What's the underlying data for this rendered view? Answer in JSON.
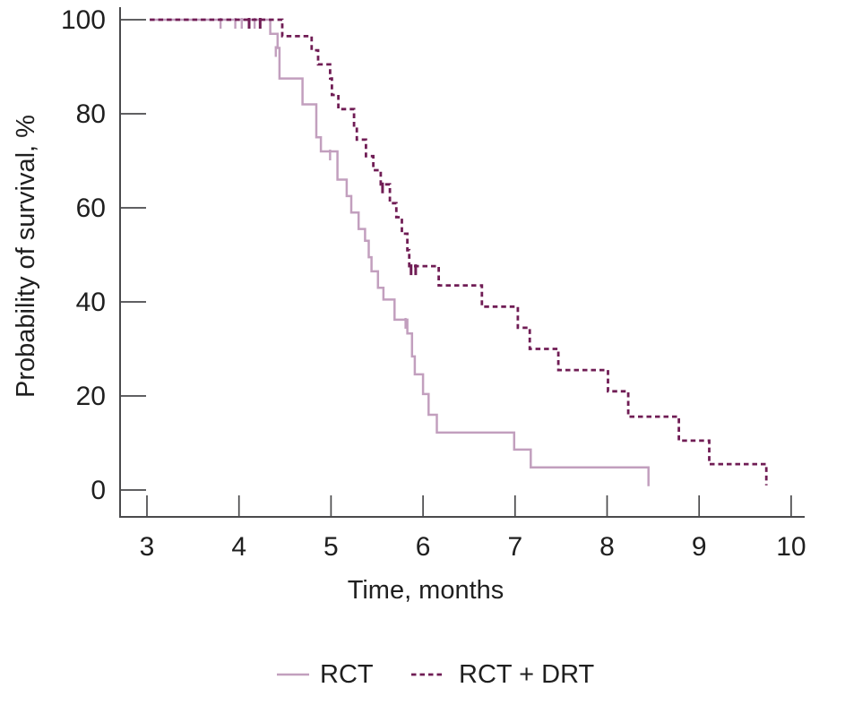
{
  "chart_data": {
    "type": "line",
    "subtype": "kaplan-meier-step",
    "title": "",
    "xlabel": "Time, months",
    "ylabel": "Probability of survival, %",
    "xlim": [
      3,
      10
    ],
    "ylim": [
      0,
      100
    ],
    "x_ticks": [
      3,
      4,
      5,
      6,
      7,
      8,
      9,
      10
    ],
    "y_ticks": [
      0,
      20,
      40,
      60,
      80,
      100
    ],
    "grid": false,
    "legend_position": "bottom-center",
    "axis_color": "#4a4a4c",
    "text_color": "#1f1f1f",
    "series": [
      {
        "name": "RCT",
        "line_style": "solid",
        "color": "#c29fbe",
        "start": [
          3.03,
          100
        ],
        "steps": [
          [
            4.34,
            97
          ],
          [
            4.42,
            94
          ],
          [
            4.44,
            87.5
          ],
          [
            4.69,
            82
          ],
          [
            4.84,
            75
          ],
          [
            4.89,
            72
          ],
          [
            5.07,
            66
          ],
          [
            5.17,
            62.5
          ],
          [
            5.22,
            59
          ],
          [
            5.3,
            55.5
          ],
          [
            5.37,
            53
          ],
          [
            5.41,
            49.5
          ],
          [
            5.44,
            46.5
          ],
          [
            5.51,
            43
          ],
          [
            5.57,
            40.5
          ],
          [
            5.69,
            36.2
          ],
          [
            5.83,
            33.3
          ],
          [
            5.88,
            28.4
          ],
          [
            5.91,
            24.6
          ],
          [
            6.0,
            20.4
          ],
          [
            6.06,
            16
          ],
          [
            6.15,
            12.2
          ],
          [
            6.99,
            8.6
          ],
          [
            7.17,
            4.8
          ],
          [
            8.45,
            0.8
          ]
        ],
        "censor_marks": [
          [
            3.8,
            100
          ],
          [
            3.96,
            100
          ],
          [
            4.03,
            100
          ],
          [
            4.17,
            100
          ],
          [
            4.4,
            94
          ],
          [
            4.99,
            72
          ],
          [
            5.81,
            36.2
          ]
        ]
      },
      {
        "name": "RCT + DRT",
        "line_style": "dashed",
        "color": "#701d55",
        "start": [
          3.03,
          100
        ],
        "steps": [
          [
            4.47,
            96.5
          ],
          [
            4.79,
            93.5
          ],
          [
            4.86,
            90.5
          ],
          [
            4.99,
            87.5
          ],
          [
            5.01,
            84
          ],
          [
            5.08,
            81
          ],
          [
            5.25,
            77.5
          ],
          [
            5.28,
            74.5
          ],
          [
            5.38,
            71
          ],
          [
            5.46,
            68
          ],
          [
            5.54,
            65
          ],
          [
            5.64,
            61
          ],
          [
            5.71,
            58
          ],
          [
            5.77,
            54.5
          ],
          [
            5.83,
            51
          ],
          [
            5.85,
            47.6
          ],
          [
            6.17,
            43.5
          ],
          [
            6.64,
            39
          ],
          [
            7.03,
            34.5
          ],
          [
            7.16,
            30
          ],
          [
            7.47,
            25.5
          ],
          [
            8.01,
            21
          ],
          [
            8.23,
            15.6
          ],
          [
            8.78,
            10.5
          ],
          [
            9.11,
            5.5
          ],
          [
            9.73,
            1.0
          ]
        ],
        "censor_marks": [
          [
            4.11,
            100
          ],
          [
            4.23,
            100
          ],
          [
            5.56,
            65
          ],
          [
            5.87,
            47.6
          ],
          [
            5.92,
            47.6
          ]
        ]
      }
    ]
  }
}
